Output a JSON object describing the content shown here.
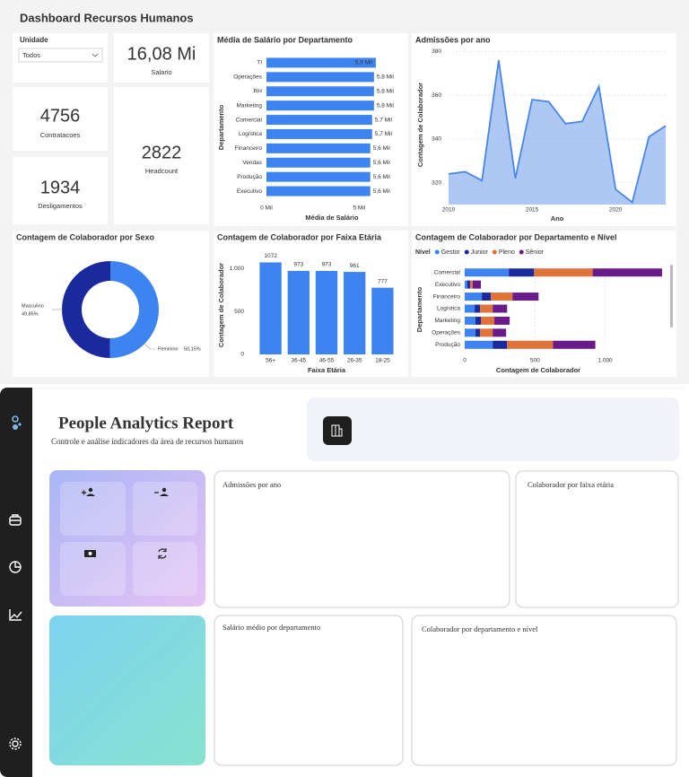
{
  "dashboard": {
    "title": "Dashboard Recursos Humanos",
    "filter": {
      "label": "Unidade",
      "value": "Todos"
    },
    "cards": [
      {
        "value": "16,08 Mi",
        "label": "Salario"
      },
      {
        "value": 4756,
        "label": "Contratacoes"
      },
      {
        "value": 1934,
        "label": "Desligamentos"
      },
      {
        "value": 2822,
        "label": "Headcount"
      }
    ]
  },
  "chart_data": [
    {
      "type": "hbar",
      "title": "Média de Salário por Departamento",
      "x_label": "Média de Salário",
      "y_label": "Departamento",
      "categories": [
        "TI",
        "Operações",
        "RH",
        "Marketing",
        "Comercial",
        "Logística",
        "Financeiro",
        "Vendas",
        "Produção",
        "Executivo"
      ],
      "values": [
        5900,
        5800,
        5800,
        5800,
        5700,
        5700,
        5600,
        5600,
        5600,
        5600
      ],
      "value_labels": [
        "5,9 Mil",
        "5,8 Mil",
        "5,8 Mil",
        "5,8 Mil",
        "5,7 Mil",
        "5,7 Mil",
        "5,6 Mil",
        "5,6 Mil",
        "5,6 Mil",
        "5,6 Mil"
      ],
      "color": "#3d84f0",
      "xlim": [
        0,
        6000
      ],
      "xticks": [
        {
          "value": 0,
          "label": "0 Mil"
        },
        {
          "value": 5000,
          "label": "5 Mil"
        }
      ]
    },
    {
      "type": "area",
      "title": "Admissões por ano",
      "x_label": "Ano",
      "y_label": "Contagem de Colaborador",
      "x": [
        2010,
        2011,
        2012,
        2013,
        2014,
        2015,
        2016,
        2017,
        2018,
        2019,
        2020,
        2021,
        2022,
        2023
      ],
      "values": [
        324,
        325,
        321,
        376,
        322,
        358,
        357,
        347,
        348,
        364,
        317,
        311,
        341,
        346
      ],
      "color": "#4a86e8",
      "xlim": [
        2010,
        2023
      ],
      "xticks": [
        2010,
        2015,
        2020
      ],
      "ylim": [
        310,
        383
      ],
      "yticks": [
        320,
        340,
        360,
        380
      ],
      "grid": true
    },
    {
      "type": "donut",
      "title": "Contagem de Colaborador por Sexo",
      "categories": [
        "Masculino",
        "Feminino"
      ],
      "values": [
        49.85,
        50.15
      ],
      "value_labels": [
        "49,85%",
        "50,15%"
      ],
      "colors": [
        "#1a2a9c",
        "#3d84f0"
      ]
    },
    {
      "type": "bar",
      "title": "Contagem de Colaborador por Faixa Etária",
      "x_label": "Faixa Etária",
      "y_label": "Contagem de Colaborador",
      "categories": [
        "56+",
        "36-45",
        "46-55",
        "26-35",
        "18-25"
      ],
      "values": [
        1072,
        973,
        973,
        961,
        777
      ],
      "color": "#3d84f0",
      "ylim": [
        0,
        1150
      ],
      "yticks": [
        0,
        500,
        {
          "value": 1000,
          "label": "1.000"
        }
      ]
    },
    {
      "type": "stacked_hbar",
      "title": "Contagem de Colaborador por Departamento e Nível",
      "legend_title": "Nível",
      "x_label": "Contagem de Colaborador",
      "y_label": "Departamento",
      "categories": [
        "Comercial",
        "Executivo",
        "Financeiro",
        "Logística",
        "Marketing",
        "Operações",
        "Produção"
      ],
      "series": [
        {
          "name": "Gestor",
          "color": "#3d84f0",
          "values": [
            314,
            19,
            122,
            71,
            77,
            77,
            199
          ]
        },
        {
          "name": "Junior",
          "color": "#1a2a9c",
          "values": [
            180,
            19,
            64,
            38,
            38,
            32,
            103
          ]
        },
        {
          "name": "Pleno",
          "color": "#e0733a",
          "values": [
            417,
            19,
            154,
            90,
            96,
            90,
            327
          ]
        },
        {
          "name": "Sênior",
          "color": "#6a1b8a",
          "values": [
            494,
            58,
            186,
            103,
            109,
            96,
            301
          ]
        }
      ],
      "xlim": [
        0,
        1450
      ],
      "xticks": [
        0,
        500,
        {
          "value": 1000,
          "label": "1.000"
        }
      ],
      "grid": true
    }
  ],
  "report": {
    "title": "People Analytics Report",
    "subtitle": "Controle e análise indicadores da área de recursos humanos",
    "panels": [
      "Admissões por ano",
      "Colaborador por faixa etária",
      "Salário médio por departamento",
      "Colaborador por departamento e nível"
    ]
  }
}
